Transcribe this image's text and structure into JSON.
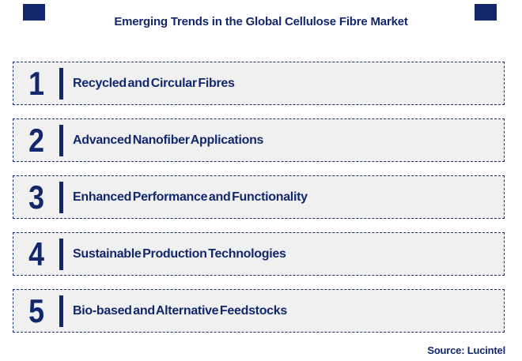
{
  "page": {
    "title": "Emerging Trends in the Global Cellulose Fibre Market",
    "source": "Source: Lucintel"
  },
  "trends": [
    {
      "rank": "1",
      "label": "Recycled and Circular Fibres"
    },
    {
      "rank": "2",
      "label": "Advanced Nanofiber Applications"
    },
    {
      "rank": "3",
      "label": "Enhanced Performance and Functionality"
    },
    {
      "rank": "4",
      "label": "Sustainable Production Technologies"
    },
    {
      "rank": "5",
      "label": "Bio-based and Alternative Feedstocks"
    }
  ],
  "decorations": {
    "corner_squares": [
      "top-left",
      "top-right"
    ]
  },
  "colors": {
    "navy": "#13286C",
    "row_bg": "#F0F0F0",
    "border": "#1B2D6E",
    "background": "#FFFFFF"
  }
}
